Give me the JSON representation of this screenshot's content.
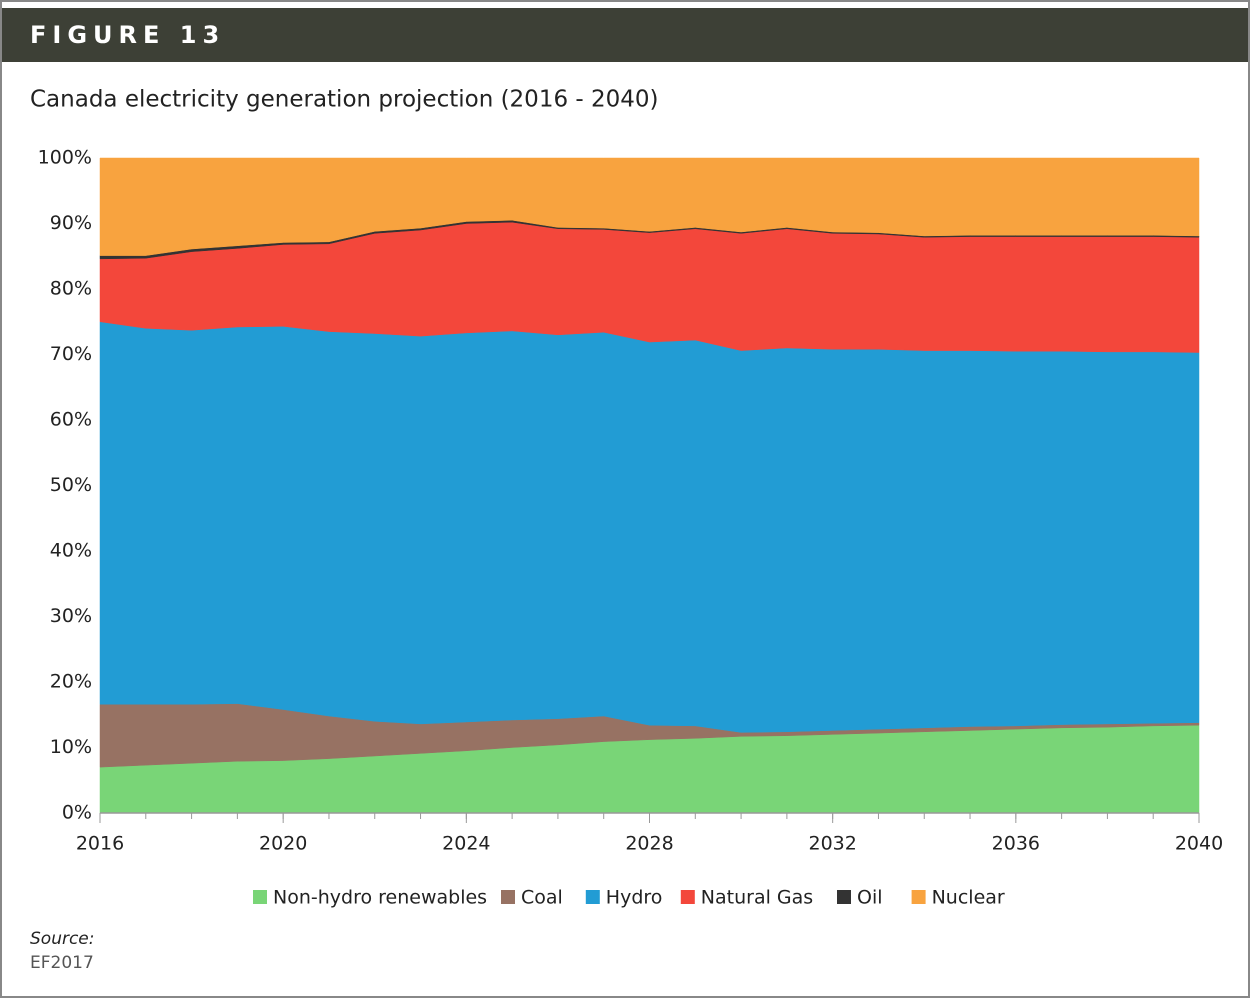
{
  "figure_label": "FIGURE 13",
  "source_label": "Source:",
  "source": "EF2017",
  "chart_data": {
    "type": "stacked_area",
    "title": "Canada electricity generation projection (2016 - 2040)",
    "x": [
      2016,
      2017,
      2018,
      2019,
      2020,
      2021,
      2022,
      2023,
      2024,
      2025,
      2026,
      2027,
      2028,
      2029,
      2030,
      2031,
      2032,
      2033,
      2034,
      2035,
      2036,
      2037,
      2038,
      2039,
      2040
    ],
    "xlim": [
      2016,
      2040
    ],
    "xticks": [
      2016,
      2020,
      2024,
      2028,
      2032,
      2036,
      2040
    ],
    "ylim": [
      0,
      100
    ],
    "yticks": [
      {
        "value": 0,
        "label": "0%"
      },
      {
        "value": 10,
        "label": "10%"
      },
      {
        "value": 20,
        "label": "20%"
      },
      {
        "value": 30,
        "label": "30%"
      },
      {
        "value": 40,
        "label": "40%"
      },
      {
        "value": 50,
        "label": "50%"
      },
      {
        "value": 60,
        "label": "60%"
      },
      {
        "value": 70,
        "label": "70%"
      },
      {
        "value": 80,
        "label": "80%"
      },
      {
        "value": 90,
        "label": "90%"
      },
      {
        "value": 100,
        "label": "100%"
      }
    ],
    "grid": false,
    "legend": "bottom",
    "series": [
      {
        "name": "Non-hydro renewables",
        "color": "#79d577",
        "values": [
          7.0,
          7.3,
          7.6,
          7.9,
          8.0,
          8.3,
          8.7,
          9.1,
          9.5,
          10.0,
          10.4,
          10.9,
          11.2,
          11.4,
          11.7,
          11.8,
          12.0,
          12.2,
          12.4,
          12.6,
          12.8,
          13.0,
          13.1,
          13.3,
          13.4
        ]
      },
      {
        "name": "Coal",
        "color": "#977263",
        "values": [
          9.6,
          9.3,
          9.0,
          8.8,
          7.8,
          6.5,
          5.3,
          4.5,
          4.4,
          4.2,
          4.0,
          3.9,
          2.2,
          1.9,
          0.6,
          0.6,
          0.6,
          0.6,
          0.6,
          0.6,
          0.5,
          0.5,
          0.5,
          0.4,
          0.4
        ]
      },
      {
        "name": "Hydro",
        "color": "#229cd4",
        "values": [
          58.4,
          57.4,
          57.1,
          57.5,
          58.5,
          58.7,
          59.2,
          59.2,
          59.4,
          59.4,
          58.6,
          58.6,
          58.5,
          58.9,
          58.3,
          58.6,
          58.2,
          58.0,
          57.6,
          57.4,
          57.2,
          57.0,
          56.8,
          56.7,
          56.5
        ]
      },
      {
        "name": "Natural Gas",
        "color": "#f3473b",
        "values": [
          9.6,
          10.7,
          12.0,
          12.0,
          12.5,
          13.4,
          15.3,
          16.2,
          16.7,
          16.6,
          16.2,
          15.7,
          16.7,
          17.0,
          17.9,
          18.2,
          17.7,
          17.6,
          17.3,
          17.4,
          17.5,
          17.5,
          17.6,
          17.6,
          17.6
        ]
      },
      {
        "name": "Oil",
        "color": "#333333",
        "values": [
          0.5,
          0.4,
          0.4,
          0.4,
          0.3,
          0.3,
          0.3,
          0.3,
          0.3,
          0.3,
          0.2,
          0.2,
          0.2,
          0.2,
          0.2,
          0.2,
          0.2,
          0.2,
          0.2,
          0.2,
          0.2,
          0.2,
          0.2,
          0.2,
          0.2
        ]
      },
      {
        "name": "Nuclear",
        "color": "#f8a33f",
        "values": [
          14.9,
          14.9,
          13.9,
          13.4,
          12.9,
          12.8,
          11.2,
          10.7,
          9.7,
          9.5,
          10.6,
          10.7,
          11.2,
          10.6,
          11.3,
          10.6,
          11.3,
          11.4,
          11.9,
          11.8,
          11.8,
          11.8,
          11.8,
          11.8,
          11.9
        ]
      }
    ]
  }
}
